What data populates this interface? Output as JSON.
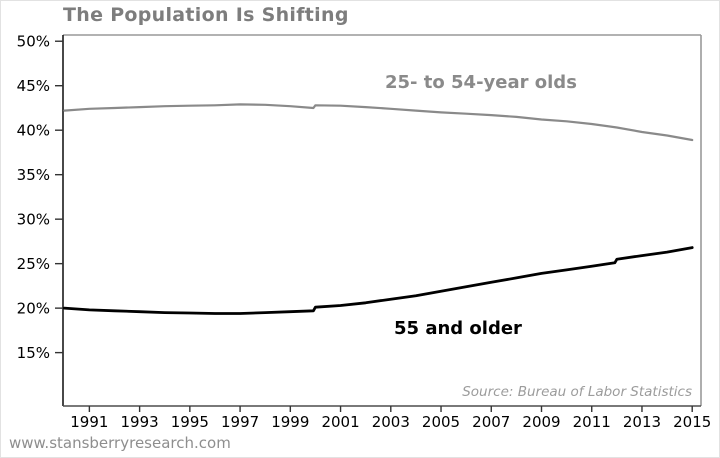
{
  "header": {
    "title": "The Population Is Shifting"
  },
  "footer": {
    "website": "www.stansberryresearch.com"
  },
  "colors": {
    "title": "#7d7d7d",
    "frame_gray": "#999999",
    "axis_black": "#1a1a1a",
    "axis_bottom": "#4d4d4d",
    "tick": "#333333",
    "tick_label": "#000000",
    "source": "#9c9c9c"
  },
  "chart_data": {
    "type": "line",
    "title": "The Population Is Shifting",
    "xlabel": "",
    "ylabel": "",
    "grid": false,
    "legend_position": "inline-annotations",
    "source_note": "Source: Bureau of Labor Statistics",
    "xlim": [
      1989.95,
      2015.35
    ],
    "ylim": [
      9.0,
      50.7
    ],
    "x_ticks": [
      1991,
      1993,
      1995,
      1997,
      1999,
      2001,
      2003,
      2005,
      2007,
      2009,
      2011,
      2013,
      2015
    ],
    "x_tick_labels": [
      "1991",
      "1993",
      "1995",
      "1997",
      "1999",
      "2001",
      "2003",
      "2005",
      "2007",
      "2009",
      "2011",
      "2013",
      "2015"
    ],
    "y_ticks": [
      50,
      45,
      40,
      35,
      30,
      25,
      20,
      15
    ],
    "y_tick_labels": [
      "50%",
      "45%",
      "40%",
      "35%",
      "30%",
      "25%",
      "20%",
      "15%"
    ],
    "series": [
      {
        "name": "25- to 54-year olds",
        "color": "#8a8a8a",
        "line_width": 2.2,
        "x": [
          1990,
          1991,
          1992,
          1993,
          1994,
          1995,
          1996,
          1997,
          1998,
          1999,
          1999.92,
          2000,
          2001,
          2002,
          2003,
          2004,
          2005,
          2006,
          2007,
          2008,
          2009,
          2010,
          2011,
          2012,
          2013,
          2014,
          2015
        ],
        "y": [
          42.2,
          42.4,
          42.5,
          42.6,
          42.7,
          42.75,
          42.8,
          42.9,
          42.85,
          42.7,
          42.5,
          42.8,
          42.75,
          42.6,
          42.4,
          42.2,
          42.0,
          41.85,
          41.7,
          41.5,
          41.2,
          41.0,
          40.7,
          40.3,
          39.8,
          39.4,
          38.9
        ]
      },
      {
        "name": "55 and older",
        "color": "#000000",
        "line_width": 2.8,
        "x": [
          1990,
          1991,
          1992,
          1993,
          1994,
          1995,
          1996,
          1997,
          1998,
          1999,
          1999.92,
          2000,
          2001,
          2002,
          2003,
          2004,
          2005,
          2006,
          2007,
          2008,
          2009,
          2010,
          2011,
          2011.92,
          2012,
          2013,
          2014,
          2015
        ],
        "y": [
          20.0,
          19.8,
          19.7,
          19.6,
          19.5,
          19.45,
          19.4,
          19.4,
          19.5,
          19.6,
          19.7,
          20.1,
          20.3,
          20.6,
          21.0,
          21.4,
          21.9,
          22.4,
          22.9,
          23.4,
          23.9,
          24.3,
          24.7,
          25.1,
          25.5,
          25.9,
          26.3,
          26.8
        ]
      }
    ]
  }
}
